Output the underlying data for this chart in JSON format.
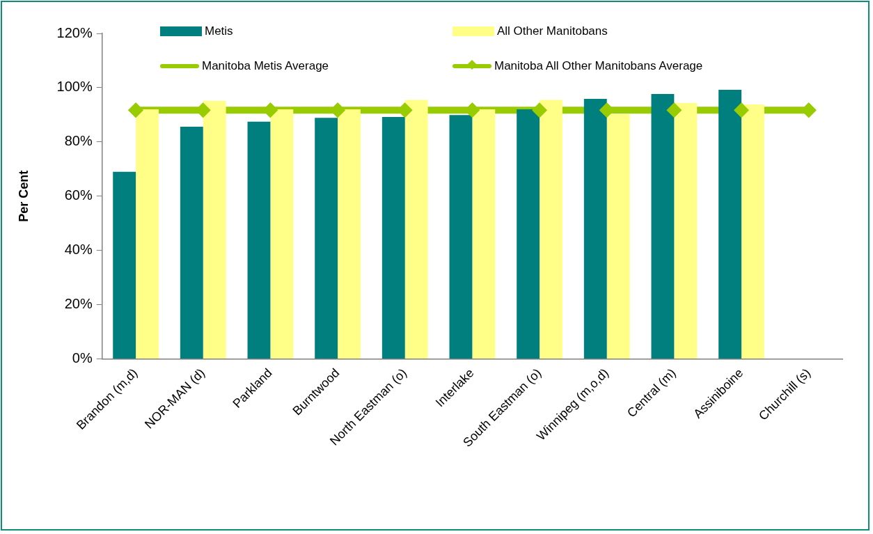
{
  "chart_data": {
    "type": "bar",
    "ylabel": "Per Cent",
    "categories": [
      "Brandon (m,d)",
      "NOR-MAN (d)",
      "Parkland",
      "Burntwood",
      "North Eastman (o)",
      "Interlake",
      "South Eastman (o)",
      "Winnipeg (m,o,d)",
      "Central (m)",
      "Assiniboine",
      "Churchill (s)"
    ],
    "series": [
      {
        "name": "Metis",
        "color": "#007f7f",
        "values": [
          69.0,
          85.6,
          87.5,
          88.9,
          89.2,
          89.9,
          92,
          95.9,
          97.7,
          99.2,
          null
        ]
      },
      {
        "name": "All Other Manitobans",
        "color": "#ffff88",
        "values": [
          92,
          95.2,
          92,
          92,
          95.5,
          92,
          95.5,
          90.2,
          94.4,
          93.8,
          null
        ]
      },
      {
        "name": "Manitoba Metis Average",
        "type": "line",
        "color": "#99cc00",
        "marker": "none",
        "values": [
          null,
          null,
          null,
          null,
          null,
          null,
          null,
          null,
          null,
          null,
          null
        ]
      },
      {
        "name": "Manitoba All Other Manitobans Average",
        "type": "line",
        "color": "#99cc00",
        "marker": "diamond",
        "values": [
          91.7,
          91.7,
          91.7,
          91.7,
          91.7,
          91.7,
          91.7,
          91.7,
          91.7,
          91.7,
          91.7
        ]
      }
    ],
    "ylim": [
      0,
      120
    ],
    "yticks": [
      {
        "value": 0,
        "label": "0%"
      },
      {
        "value": 20,
        "label": "20%"
      },
      {
        "value": 40,
        "label": "40%"
      },
      {
        "value": 60,
        "label": "60%"
      },
      {
        "value": 80,
        "label": "80%"
      },
      {
        "value": 100,
        "label": "100%"
      },
      {
        "value": 120,
        "label": "120%"
      }
    ],
    "legend": "top",
    "grid": false
  }
}
